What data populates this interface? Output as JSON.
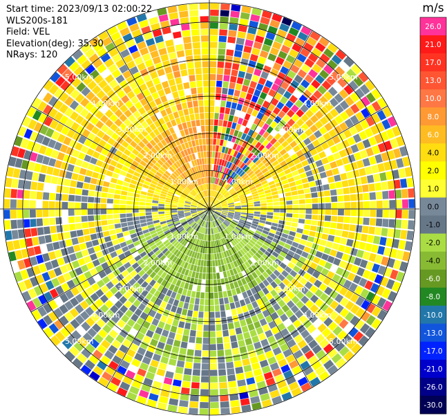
{
  "chart_data": {
    "type": "ppi_radar",
    "header": {
      "start_time": "Start time: 2023/09/13 02:00:22",
      "instrument": "WLS200s-181",
      "field": "Field: VEL",
      "elevation": "Elevation(deg): 35.30",
      "nrays": "NRays: 120"
    },
    "n_rays": 120,
    "range_rings_km": [
      1.0,
      2.0,
      3.0,
      4.0,
      5.0
    ],
    "ring_labels": [
      "1.00km",
      "2.00km",
      "3.00km",
      "4.00km",
      "5.00km"
    ],
    "max_range_km": 5.0,
    "colorbar": {
      "title": "m/s",
      "ticks": [
        "26.0",
        "21.0",
        "17.0",
        "13.0",
        "10.0",
        "8.0",
        "6.0",
        "4.0",
        "2.0",
        "1.0",
        "0.0",
        "-1.0",
        "-2.0",
        "-4.0",
        "-6.0",
        "-8.0",
        "-10.0",
        "-13.0",
        "-17.0",
        "-21.0",
        "-26.0",
        "-30.0"
      ],
      "colors": [
        "#ff3399",
        "#ff1a1a",
        "#ff3322",
        "#ff5533",
        "#ff7744",
        "#ff9933",
        "#ffbb22",
        "#ffdd11",
        "#ffff00",
        "#ffff33",
        "#778899",
        "#667788",
        "#aadd44",
        "#88bb33",
        "#669922",
        "#228822",
        "#2277aa",
        "#1155dd",
        "#0022ff",
        "#0000cc",
        "#000088",
        "#000055"
      ]
    },
    "field_summary": {
      "near_range_north": "positive velocity (orange/yellow, ~4-8 m/s)",
      "near_range_south": "negative velocity (green, ~-2 to -6 m/s)",
      "mid_range": "yellow to yellow-green, gray near zero",
      "far_range": "noisy, mixed colors"
    }
  }
}
